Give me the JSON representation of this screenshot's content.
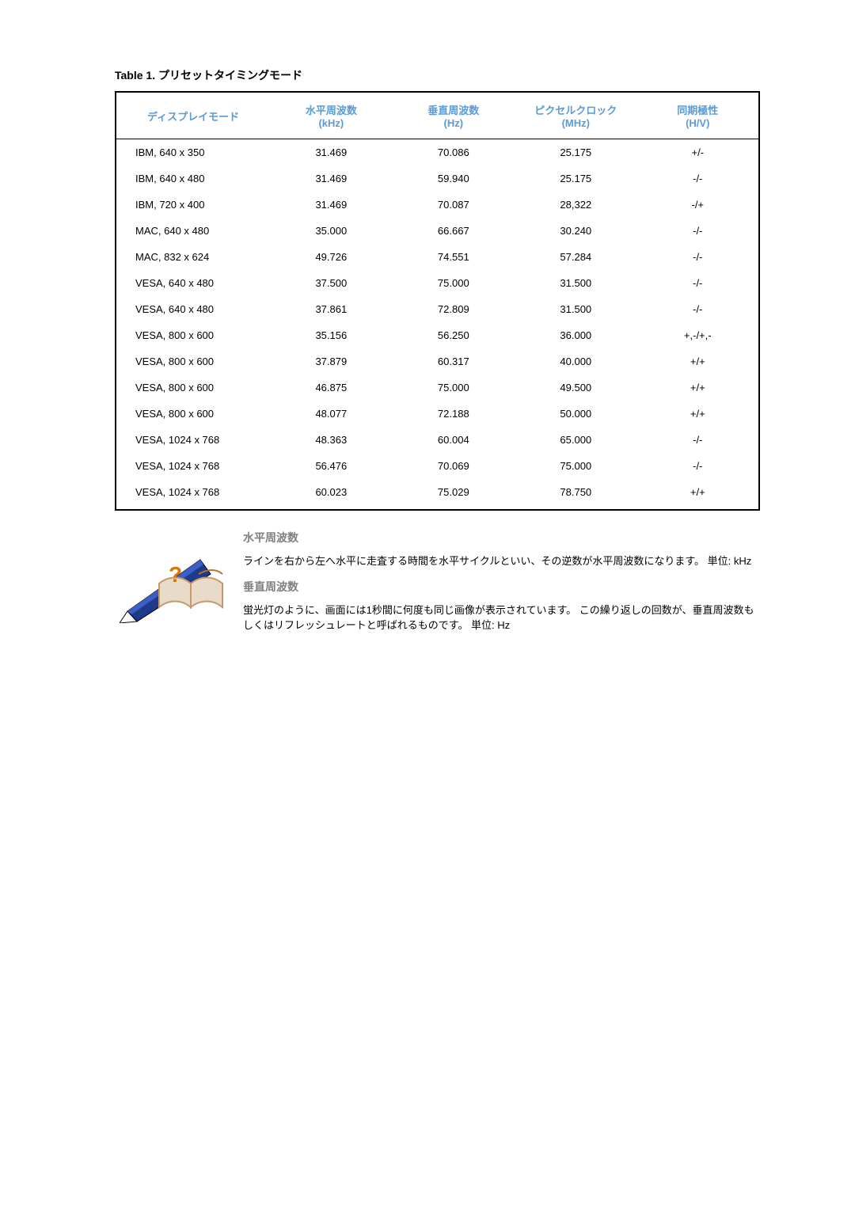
{
  "table": {
    "title": "Table 1. プリセットタイミングモード",
    "columns": [
      {
        "label": "ディスプレイモード",
        "sub": ""
      },
      {
        "label": "水平周波数",
        "sub": "(kHz)"
      },
      {
        "label": "垂直周波数",
        "sub": "(Hz)"
      },
      {
        "label": "ピクセルクロック",
        "sub": "(MHz)"
      },
      {
        "label": "同期極性",
        "sub": "(H/V)"
      }
    ],
    "rows": [
      [
        "IBM, 640 x 350",
        "31.469",
        "70.086",
        "25.175",
        "+/-"
      ],
      [
        "IBM, 640 x 480",
        "31.469",
        "59.940",
        "25.175",
        "-/-"
      ],
      [
        "IBM, 720 x 400",
        "31.469",
        "70.087",
        "28,322",
        "-/+"
      ],
      [
        "MAC, 640 x 480",
        "35.000",
        "66.667",
        "30.240",
        "-/-"
      ],
      [
        "MAC, 832 x 624",
        "49.726",
        "74.551",
        "57.284",
        "-/-"
      ],
      [
        "VESA, 640 x 480",
        "37.500",
        "75.000",
        "31.500",
        "-/-"
      ],
      [
        "VESA, 640 x 480",
        "37.861",
        "72.809",
        "31.500",
        "-/-"
      ],
      [
        "VESA, 800 x 600",
        "35.156",
        "56.250",
        "36.000",
        "+,-/+,-"
      ],
      [
        "VESA, 800 x 600",
        "37.879",
        "60.317",
        "40.000",
        "+/+"
      ],
      [
        "VESA, 800 x 600",
        "46.875",
        "75.000",
        "49.500",
        "+/+"
      ],
      [
        "VESA, 800 x 600",
        "48.077",
        "72.188",
        "50.000",
        "+/+"
      ],
      [
        "VESA, 1024 x 768",
        "48.363",
        "60.004",
        "65.000",
        "-/-"
      ],
      [
        "VESA, 1024 x 768",
        "56.476",
        "70.069",
        "75.000",
        "-/-"
      ],
      [
        "VESA, 1024 x 768",
        "60.023",
        "75.029",
        "78.750",
        "+/+"
      ]
    ],
    "header_color": "#5a9bd5",
    "border_color": "#000000"
  },
  "info": {
    "sections": [
      {
        "heading": "水平周波数",
        "text": "ラインを右から左へ水平に走査する時間を水平サイクルといい、その逆数が水平周波数になります。 単位: kHz"
      },
      {
        "heading": "垂直周波数",
        "text": "蛍光灯のように、画面には1秒間に何度も同じ画像が表示されています。 この繰り返しの回数が、垂直周波数もしくはリフレッシュレートと呼ばれるものです。 単位: Hz"
      }
    ]
  }
}
